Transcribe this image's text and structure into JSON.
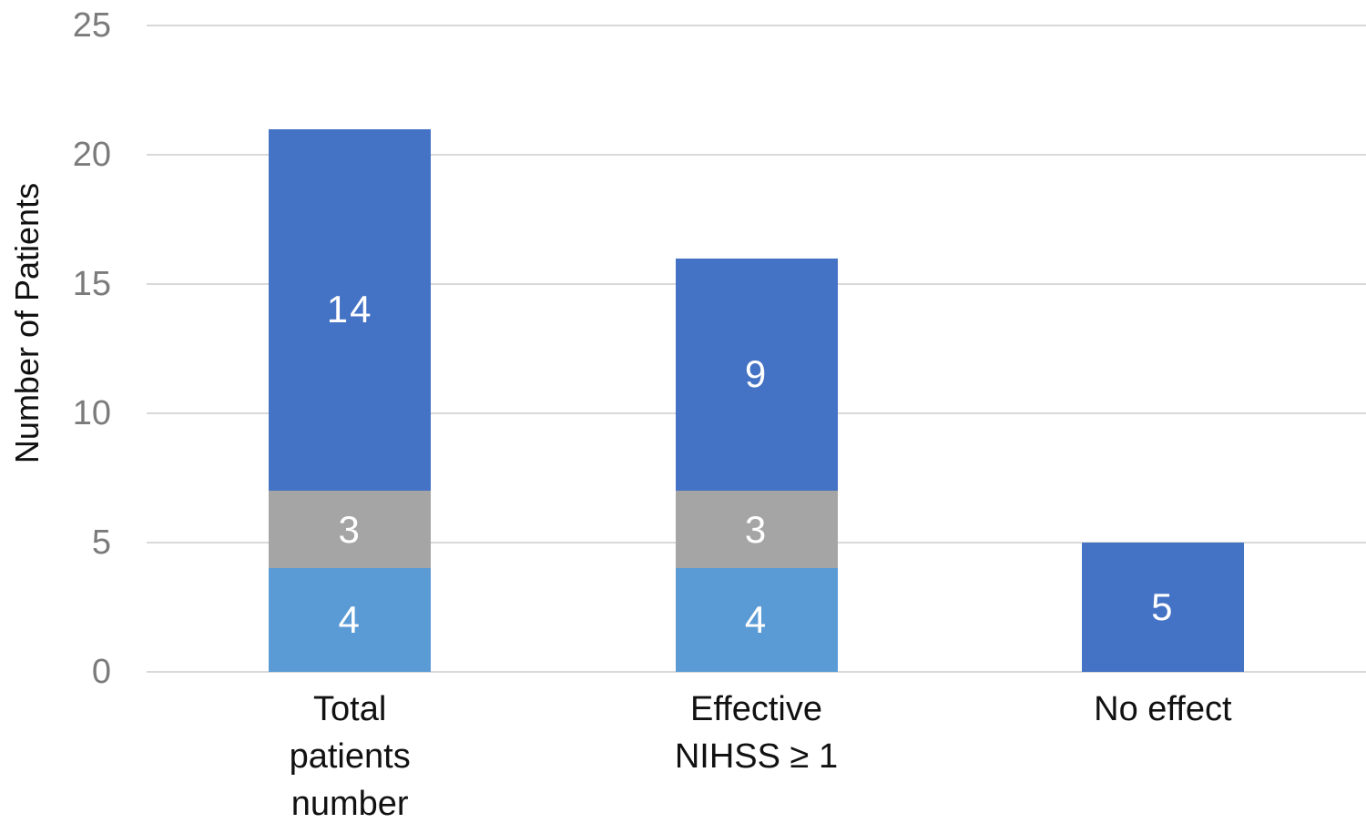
{
  "figure": {
    "background": "#FFFFFF"
  },
  "chart_data": {
    "type": "bar",
    "stacked": true,
    "ylabel": "Number of Patients",
    "xlabel": "",
    "ylim": [
      0,
      25
    ],
    "yticks": [
      0,
      5,
      10,
      15,
      20,
      25
    ],
    "grid": true,
    "legend": false,
    "categories": [
      "Total patients number",
      "Effective NIHSS ≥ 1",
      "No effect"
    ],
    "category_label_lines": [
      [
        "Total",
        "patients",
        "number"
      ],
      [
        "Effective",
        "NIHSS ≥ 1"
      ],
      [
        "No effect"
      ]
    ],
    "series": [
      {
        "name": "bottom-segment",
        "color": "#5B9BD5",
        "values": [
          4,
          4,
          0
        ]
      },
      {
        "name": "middle-segment",
        "color": "#A5A5A5",
        "values": [
          3,
          3,
          0
        ]
      },
      {
        "name": "top-segment",
        "color": "#4472C4",
        "values": [
          14,
          9,
          5
        ]
      }
    ],
    "show_data_labels": true,
    "bar_totals": [
      21,
      16,
      5
    ]
  },
  "style_colors": {
    "gridline": "#D9D9D9",
    "tick_label": "#7B7B7B",
    "axis_title": "#111111",
    "category_label": "#111111",
    "data_label": "#FFFFFF"
  }
}
